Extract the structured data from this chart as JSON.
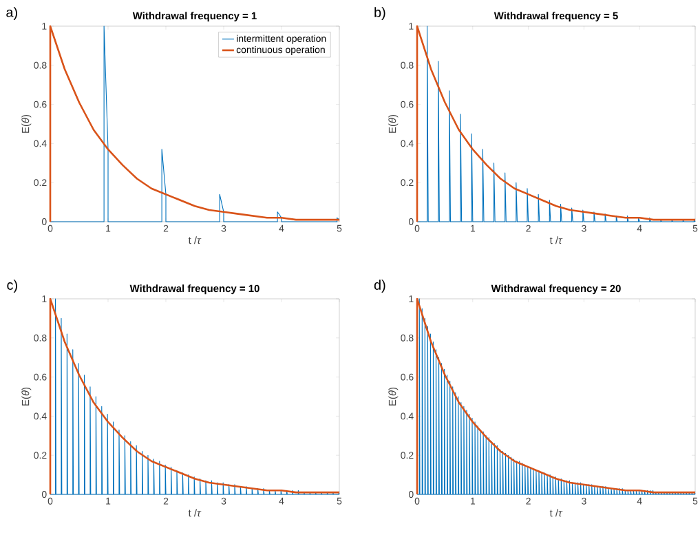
{
  "chart_data": [
    {
      "type": "line",
      "title": "Withdrawal frequency = 1",
      "xlabel": "t /*τ*",
      "ylabel": "E(*θ*)",
      "annotations": [
        "a)"
      ],
      "xlim": [
        0,
        5
      ],
      "ylim": [
        0,
        1
      ],
      "xticks": [
        0,
        1,
        2,
        3,
        4,
        5
      ],
      "yticks": [
        0,
        0.2,
        0.4,
        0.6,
        0.8,
        1
      ],
      "legend": "top right",
      "series": [
        {
          "name": "intermittent operation",
          "color": "#0072bd",
          "x": [
            0,
            0.93,
            0.93,
            1.0,
            1.0,
            1.93,
            1.93,
            2.0,
            2.0,
            2.93,
            2.93,
            3.0,
            3.0,
            3.93,
            3.93,
            4.0,
            4.0,
            4.96,
            4.96,
            5.0
          ],
          "values": [
            0,
            0,
            1,
            0.37,
            0,
            0,
            0.37,
            0.14,
            0,
            0,
            0.14,
            0.05,
            0,
            0,
            0.05,
            0.02,
            0,
            0,
            0.02,
            0.01
          ]
        },
        {
          "name": "continuous operation",
          "color": "#d95319",
          "x": [
            0,
            0,
            0.25,
            0.5,
            0.75,
            1,
            1.25,
            1.5,
            1.75,
            2,
            2.25,
            2.5,
            2.75,
            3,
            3.25,
            3.5,
            3.75,
            4,
            4.25,
            4.5,
            4.75,
            5
          ],
          "values": [
            0,
            1,
            0.78,
            0.61,
            0.47,
            0.37,
            0.29,
            0.22,
            0.17,
            0.14,
            0.11,
            0.08,
            0.06,
            0.05,
            0.04,
            0.03,
            0.02,
            0.02,
            0.01,
            0.01,
            0.01,
            0.01
          ]
        }
      ]
    },
    {
      "type": "line",
      "title": "Withdrawal frequency = 5",
      "xlabel": "t /*τ*",
      "ylabel": "E(*θ*)",
      "annotations": [
        "b)"
      ],
      "xlim": [
        0,
        5
      ],
      "ylim": [
        0,
        1
      ],
      "xticks": [
        0,
        1,
        2,
        3,
        4,
        5
      ],
      "yticks": [
        0,
        0.2,
        0.4,
        0.6,
        0.8,
        1
      ],
      "series": [
        {
          "color": "#0072bd",
          "x": [
            0,
            0.18,
            0.18,
            0.2,
            0.38,
            0.38,
            0.4,
            0.58,
            0.58,
            0.6,
            0.78,
            0.78,
            0.8,
            0.98,
            0.98,
            1,
            1.18,
            1.18,
            1.2,
            1.38,
            1.38,
            1.4,
            1.58,
            1.58,
            1.6,
            1.78,
            1.78,
            1.8,
            1.98,
            1.98,
            2,
            2.18,
            2.18,
            2.2,
            2.38,
            2.38,
            2.4,
            2.58,
            2.58,
            2.6,
            2.78,
            2.78,
            2.8,
            2.98,
            2.98,
            3,
            3.18,
            3.18,
            3.2,
            3.38,
            3.38,
            3.4,
            3.58,
            3.58,
            3.6,
            3.78,
            3.78,
            3.8,
            3.98,
            3.98,
            4,
            4.18,
            4.18,
            4.2,
            4.38,
            4.38,
            4.4,
            4.58,
            4.58,
            4.6,
            4.78,
            4.78,
            4.8,
            4.98,
            4.98,
            5
          ],
          "values": [
            0,
            0,
            1,
            0,
            0,
            0.82,
            0,
            0,
            0.67,
            0,
            0,
            0.55,
            0,
            0,
            0.45,
            0,
            0,
            0.37,
            0,
            0,
            0.3,
            0,
            0,
            0.25,
            0,
            0,
            0.2,
            0,
            0,
            0.17,
            0,
            0,
            0.14,
            0,
            0,
            0.11,
            0,
            0,
            0.09,
            0,
            0,
            0.07,
            0,
            0,
            0.06,
            0,
            0,
            0.05,
            0,
            0,
            0.04,
            0,
            0,
            0.03,
            0,
            0,
            0.03,
            0,
            0,
            0.02,
            0,
            0,
            0.02,
            0,
            0,
            0.01,
            0,
            0,
            0.01,
            0,
            0,
            0.01,
            0,
            0,
            0.01,
            0
          ]
        },
        {
          "color": "#d95319",
          "x": [
            0,
            0,
            0.25,
            0.5,
            0.75,
            1,
            1.25,
            1.5,
            1.75,
            2,
            2.25,
            2.5,
            2.75,
            3,
            3.25,
            3.5,
            3.75,
            4,
            4.25,
            4.5,
            4.75,
            5
          ],
          "values": [
            0,
            1,
            0.78,
            0.61,
            0.47,
            0.37,
            0.29,
            0.22,
            0.17,
            0.14,
            0.11,
            0.08,
            0.06,
            0.05,
            0.04,
            0.03,
            0.02,
            0.02,
            0.01,
            0.01,
            0.01,
            0.01
          ]
        }
      ]
    },
    {
      "type": "line",
      "title": "Withdrawal frequency = 10",
      "xlabel": "t /*τ*",
      "ylabel": "E(*θ*)",
      "annotations": [
        "c)"
      ],
      "xlim": [
        0,
        5
      ],
      "ylim": [
        0,
        1
      ],
      "xticks": [
        0,
        1,
        2,
        3,
        4,
        5
      ],
      "yticks": [
        0,
        0.2,
        0.4,
        0.6,
        0.8,
        1
      ],
      "series": [
        {
          "color": "#0072bd",
          "x": [
            0,
            0.09,
            0.09,
            0.1,
            0.19,
            0.19,
            0.2,
            0.29,
            0.29,
            0.3,
            0.39,
            0.39,
            0.4,
            0.49,
            0.49,
            0.5,
            0.59,
            0.59,
            0.6,
            0.69,
            0.69,
            0.7,
            0.79,
            0.79,
            0.8,
            0.89,
            0.89,
            0.9,
            0.99,
            0.99,
            1,
            1.09,
            1.09,
            1.1,
            1.19,
            1.19,
            1.2,
            1.29,
            1.29,
            1.3,
            1.39,
            1.39,
            1.4,
            1.49,
            1.49,
            1.5,
            1.59,
            1.59,
            1.6,
            1.69,
            1.69,
            1.7,
            1.79,
            1.79,
            1.8,
            1.89,
            1.89,
            1.9,
            1.99,
            1.99,
            2,
            2.09,
            2.09,
            2.1,
            2.19,
            2.19,
            2.2,
            2.29,
            2.29,
            2.3,
            2.39,
            2.39,
            2.4,
            2.49,
            2.49,
            2.5,
            2.59,
            2.59,
            2.6,
            2.69,
            2.69,
            2.7,
            2.79,
            2.79,
            2.8,
            2.89,
            2.89,
            2.9,
            2.99,
            2.99,
            3,
            3.09,
            3.09,
            3.1,
            3.19,
            3.19,
            3.2,
            3.29,
            3.29,
            3.3,
            3.39,
            3.39,
            3.4,
            3.49,
            3.49,
            3.5,
            3.59,
            3.59,
            3.6,
            3.69,
            3.69,
            3.7,
            3.79,
            3.79,
            3.8,
            3.89,
            3.89,
            3.9,
            3.99,
            3.99,
            4,
            4.09,
            4.09,
            4.1,
            4.19,
            4.19,
            4.2,
            4.29,
            4.29,
            4.3,
            4.39,
            4.39,
            4.4,
            4.49,
            4.49,
            4.5,
            4.59,
            4.59,
            4.6,
            4.69,
            4.69,
            4.7,
            4.79,
            4.79,
            4.8,
            4.89,
            4.89,
            4.9,
            4.99,
            4.99,
            5
          ],
          "values": [
            0,
            0,
            1,
            0,
            0,
            0.9,
            0,
            0,
            0.82,
            0,
            0,
            0.74,
            0,
            0,
            0.67,
            0,
            0,
            0.61,
            0,
            0,
            0.55,
            0,
            0,
            0.5,
            0,
            0,
            0.45,
            0,
            0,
            0.41,
            0,
            0,
            0.37,
            0,
            0,
            0.33,
            0,
            0,
            0.3,
            0,
            0,
            0.27,
            0,
            0,
            0.25,
            0,
            0,
            0.22,
            0,
            0,
            0.2,
            0,
            0,
            0.18,
            0,
            0,
            0.17,
            0,
            0,
            0.15,
            0,
            0,
            0.14,
            0,
            0,
            0.12,
            0,
            0,
            0.11,
            0,
            0,
            0.1,
            0,
            0,
            0.09,
            0,
            0,
            0.08,
            0,
            0,
            0.07,
            0,
            0,
            0.07,
            0,
            0,
            0.06,
            0,
            0,
            0.06,
            0,
            0,
            0.05,
            0,
            0,
            0.05,
            0,
            0,
            0.04,
            0,
            0,
            0.04,
            0,
            0,
            0.03,
            0,
            0,
            0.03,
            0,
            0,
            0.03,
            0,
            0,
            0.02,
            0,
            0,
            0.02,
            0,
            0,
            0.02,
            0,
            0,
            0.02,
            0,
            0,
            0.02,
            0,
            0,
            0.02,
            0,
            0,
            0.01,
            0,
            0,
            0.01,
            0,
            0,
            0.01,
            0,
            0,
            0.01,
            0,
            0,
            0.01,
            0,
            0,
            0.01,
            0,
            0,
            0.01,
            0
          ]
        },
        {
          "color": "#d95319",
          "x": [
            0,
            0,
            0.25,
            0.5,
            0.75,
            1,
            1.25,
            1.5,
            1.75,
            2,
            2.25,
            2.5,
            2.75,
            3,
            3.25,
            3.5,
            3.75,
            4,
            4.25,
            4.5,
            4.75,
            5
          ],
          "values": [
            0,
            1,
            0.78,
            0.61,
            0.47,
            0.37,
            0.29,
            0.22,
            0.17,
            0.14,
            0.11,
            0.08,
            0.06,
            0.05,
            0.04,
            0.03,
            0.02,
            0.02,
            0.01,
            0.01,
            0.01,
            0.01
          ]
        }
      ]
    },
    {
      "type": "line",
      "title": "Withdrawal frequency = 20",
      "xlabel": "t /*τ*",
      "ylabel": "E(*θ*)",
      "annotations": [
        "d)"
      ],
      "xlim": [
        0,
        5
      ],
      "ylim": [
        0,
        1
      ],
      "xticks": [
        0,
        1,
        2,
        3,
        4,
        5
      ],
      "yticks": [
        0,
        0.2,
        0.4,
        0.6,
        0.8,
        1
      ],
      "series": [
        {
          "color": "#0072bd",
          "x": [
            0,
            0.04,
            0.04,
            0.05,
            0.09,
            0.09,
            0.1,
            0.14,
            0.14,
            0.15,
            0.19,
            0.19,
            0.2,
            0.24,
            0.24,
            0.25,
            0.29,
            0.29,
            0.3,
            0.34,
            0.34,
            0.35,
            0.39,
            0.39,
            0.4,
            0.44,
            0.44,
            0.45,
            0.49,
            0.49,
            0.5,
            0.54,
            0.54,
            0.55,
            0.59,
            0.59,
            0.6,
            0.64,
            0.64,
            0.65,
            0.69,
            0.69,
            0.7,
            0.74,
            0.74,
            0.75,
            0.79,
            0.79,
            0.8,
            0.84,
            0.84,
            0.85,
            0.89,
            0.89,
            0.9,
            0.94,
            0.94,
            0.95,
            0.99,
            0.99,
            1,
            1.04,
            1.04,
            1.05,
            1.09,
            1.09,
            1.1,
            1.14,
            1.14,
            1.15,
            1.19,
            1.19,
            1.2,
            1.24,
            1.24,
            1.25,
            1.29,
            1.29,
            1.3,
            1.34,
            1.34,
            1.35,
            1.39,
            1.39,
            1.4,
            1.44,
            1.44,
            1.45,
            1.49,
            1.49,
            1.5,
            1.54,
            1.54,
            1.55,
            1.59,
            1.59,
            1.6,
            1.64,
            1.64,
            1.65,
            1.69,
            1.69,
            1.7,
            1.74,
            1.74,
            1.75,
            1.79,
            1.79,
            1.8,
            1.84,
            1.84,
            1.85,
            1.89,
            1.89,
            1.9,
            1.94,
            1.94,
            1.95,
            1.99,
            1.99,
            2,
            2.04,
            2.04,
            2.05,
            2.09,
            2.09,
            2.1,
            2.14,
            2.14,
            2.15,
            2.19,
            2.19,
            2.2,
            2.24,
            2.24,
            2.25,
            2.29,
            2.29,
            2.3,
            2.34,
            2.34,
            2.35,
            2.39,
            2.39,
            2.4,
            2.44,
            2.44,
            2.45,
            2.49,
            2.49,
            2.5,
            2.54,
            2.54,
            2.55,
            2.59,
            2.59,
            2.6,
            2.64,
            2.64,
            2.65,
            2.69,
            2.69,
            2.7,
            2.74,
            2.74,
            2.75,
            2.79,
            2.79,
            2.8,
            2.84,
            2.84,
            2.85,
            2.89,
            2.89,
            2.9,
            2.94,
            2.94,
            2.95,
            2.99,
            2.99,
            3,
            3.04,
            3.04,
            3.05,
            3.09,
            3.09,
            3.1,
            3.14,
            3.14,
            3.15,
            3.19,
            3.19,
            3.2,
            3.24,
            3.24,
            3.25,
            3.29,
            3.29,
            3.3,
            3.34,
            3.34,
            3.35,
            3.39,
            3.39,
            3.4,
            3.44,
            3.44,
            3.45,
            3.49,
            3.49,
            3.5,
            3.54,
            3.54,
            3.55,
            3.59,
            3.59,
            3.6,
            3.64,
            3.64,
            3.65,
            3.69,
            3.69,
            3.7,
            3.74,
            3.74,
            3.75,
            3.79,
            3.79,
            3.8,
            3.84,
            3.84,
            3.85,
            3.89,
            3.89,
            3.9,
            3.94,
            3.94,
            3.95,
            3.99,
            3.99,
            4,
            4.04,
            4.04,
            4.05,
            4.09,
            4.09,
            4.1,
            4.14,
            4.14,
            4.15,
            4.19,
            4.19,
            4.2,
            4.24,
            4.24,
            4.25,
            4.29,
            4.29,
            4.3,
            4.34,
            4.34,
            4.35,
            4.39,
            4.39,
            4.4,
            4.44,
            4.44,
            4.45,
            4.49,
            4.49,
            4.5,
            4.54,
            4.54,
            4.55,
            4.59,
            4.59,
            4.6,
            4.64,
            4.64,
            4.65,
            4.69,
            4.69,
            4.7,
            4.74,
            4.74,
            4.75,
            4.79,
            4.79,
            4.8,
            4.84,
            4.84,
            4.85,
            4.89,
            4.89,
            4.9,
            4.94,
            4.94,
            4.95,
            4.99,
            4.99,
            5
          ],
          "values": [
            0,
            0,
            1,
            0,
            0,
            0.95,
            0,
            0,
            0.9,
            0,
            0,
            0.86,
            0,
            0,
            0.82,
            0,
            0,
            0.78,
            0,
            0,
            0.74,
            0,
            0,
            0.7,
            0,
            0,
            0.67,
            0,
            0,
            0.64,
            0,
            0,
            0.61,
            0,
            0,
            0.58,
            0,
            0,
            0.55,
            0,
            0,
            0.52,
            0,
            0,
            0.5,
            0,
            0,
            0.47,
            0,
            0,
            0.45,
            0,
            0,
            0.43,
            0,
            0,
            0.41,
            0,
            0,
            0.39,
            0,
            0,
            0.37,
            0,
            0,
            0.35,
            0,
            0,
            0.33,
            0,
            0,
            0.32,
            0,
            0,
            0.3,
            0,
            0,
            0.29,
            0,
            0,
            0.27,
            0,
            0,
            0.26,
            0,
            0,
            0.25,
            0,
            0,
            0.23,
            0,
            0,
            0.22,
            0,
            0,
            0.21,
            0,
            0,
            0.2,
            0,
            0,
            0.19,
            0,
            0,
            0.18,
            0,
            0,
            0.17,
            0,
            0,
            0.17,
            0,
            0,
            0.16,
            0,
            0,
            0.15,
            0,
            0,
            0.14,
            0,
            0,
            0.14,
            0,
            0,
            0.13,
            0,
            0,
            0.12,
            0,
            0,
            0.12,
            0,
            0,
            0.11,
            0,
            0,
            0.11,
            0,
            0,
            0.1,
            0,
            0,
            0.1,
            0,
            0,
            0.09,
            0,
            0,
            0.09,
            0,
            0,
            0.08,
            0,
            0,
            0.08,
            0,
            0,
            0.07,
            0,
            0,
            0.07,
            0,
            0,
            0.07,
            0,
            0,
            0.06,
            0,
            0,
            0.06,
            0,
            0,
            0.06,
            0,
            0,
            0.06,
            0,
            0,
            0.05,
            0,
            0,
            0.05,
            0,
            0,
            0.05,
            0,
            0,
            0.05,
            0,
            0,
            0.04,
            0,
            0,
            0.04,
            0,
            0,
            0.04,
            0,
            0,
            0.04,
            0,
            0,
            0.04,
            0,
            0,
            0.03,
            0,
            0,
            0.03,
            0,
            0,
            0.03,
            0,
            0,
            0.03,
            0,
            0,
            0.03,
            0,
            0,
            0.03,
            0,
            0,
            0.02,
            0,
            0,
            0.02,
            0,
            0,
            0.02,
            0,
            0,
            0.02,
            0,
            0,
            0.02,
            0,
            0,
            0.02,
            0,
            0,
            0.02,
            0,
            0,
            0.02,
            0,
            0,
            0.02,
            0,
            0,
            0.02,
            0,
            0,
            0.02,
            0,
            0,
            0.01,
            0,
            0,
            0.01,
            0,
            0,
            0.01,
            0,
            0,
            0.01,
            0,
            0,
            0.01,
            0,
            0,
            0.01,
            0,
            0,
            0.01,
            0,
            0,
            0.01,
            0,
            0,
            0.01,
            0,
            0,
            0.01,
            0,
            0,
            0.01,
            0,
            0,
            0.01,
            0,
            0,
            0.01,
            0,
            0,
            0.01,
            0,
            0,
            0.01,
            0
          ]
        },
        {
          "color": "#d95319",
          "x": [
            0,
            0,
            0.25,
            0.5,
            0.75,
            1,
            1.25,
            1.5,
            1.75,
            2,
            2.25,
            2.5,
            2.75,
            3,
            3.25,
            3.5,
            3.75,
            4,
            4.25,
            4.5,
            4.75,
            5
          ],
          "values": [
            0,
            1,
            0.78,
            0.61,
            0.47,
            0.37,
            0.29,
            0.22,
            0.17,
            0.14,
            0.11,
            0.08,
            0.06,
            0.05,
            0.04,
            0.03,
            0.02,
            0.02,
            0.01,
            0.01,
            0.01,
            0.01
          ]
        }
      ]
    }
  ]
}
